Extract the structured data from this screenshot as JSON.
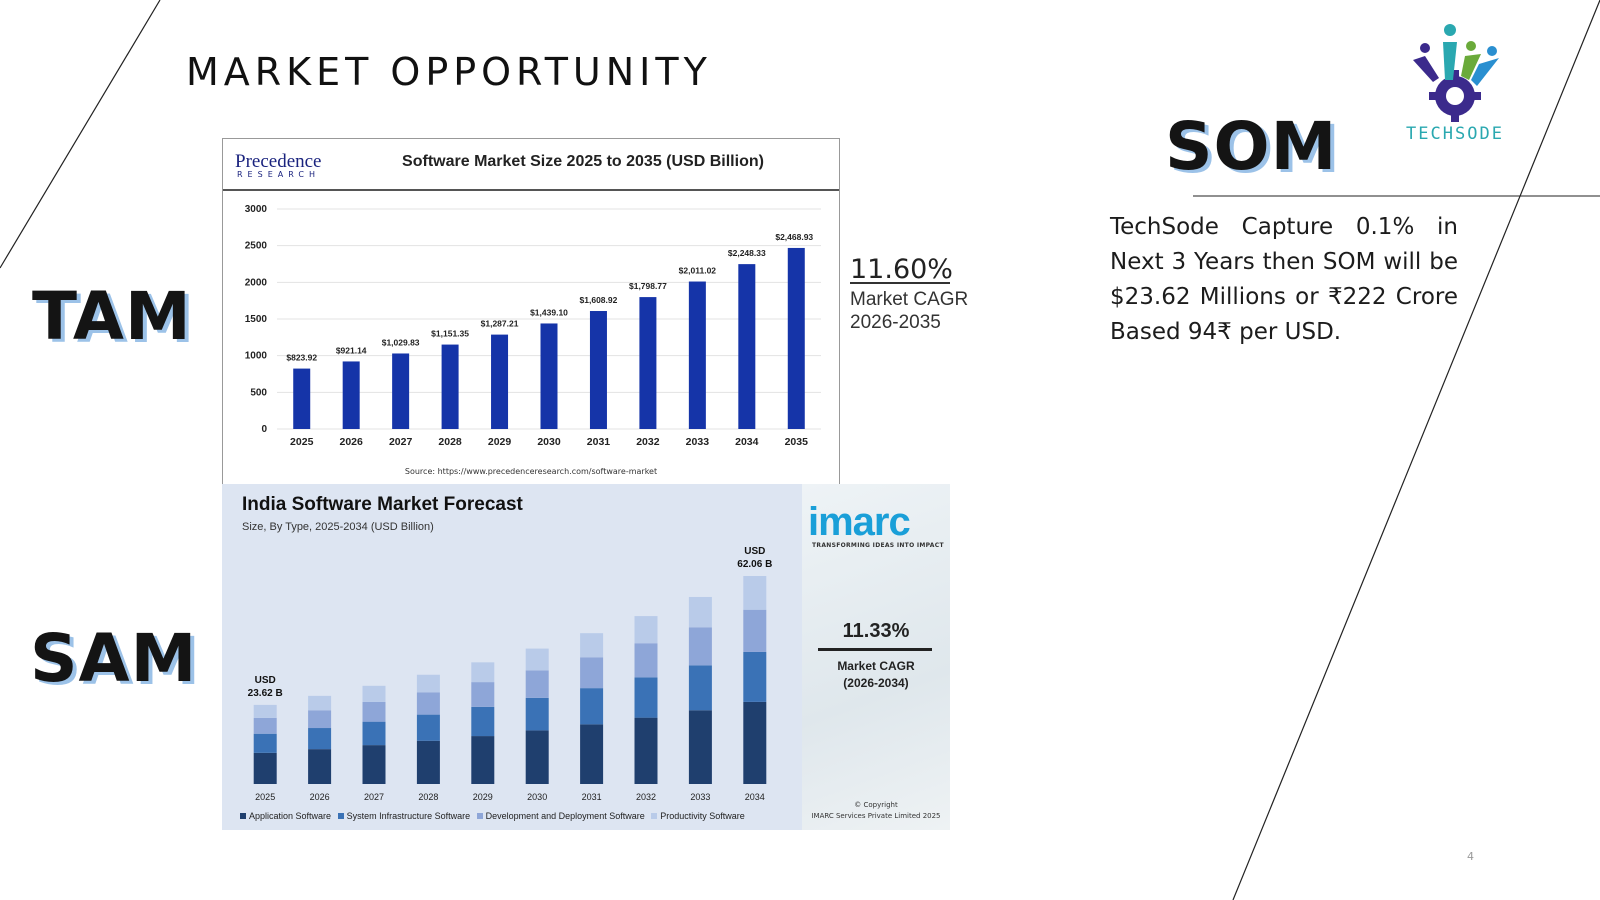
{
  "slide": {
    "title": "MARKET OPPORTUNITY",
    "tam_label": "TAM",
    "sam_label": "SAM",
    "som_label": "SOM",
    "page_number": "4",
    "logo_text": "TECHSODE",
    "som_text": "TechSode Capture 0.1% in Next 3 Years then SOM will be $23.62 Millions or ₹222 Crore Based 94₹ per USD."
  },
  "tam_cagr": {
    "value": "11.60%",
    "label_line1": "Market CAGR",
    "label_line2": "2026-2035"
  },
  "chart1": {
    "logo_name": "Precedence",
    "logo_sub": "RESEARCH",
    "title": "Software Market Size 2025 to 2035 (USD Billion)",
    "source": "Source: https://www.precedenceresearch.com/software-market"
  },
  "chart2": {
    "title": "India Software Market Forecast",
    "subtitle": "Size, By Type, 2025-2034 (USD Billion)",
    "start_label_1": "USD",
    "start_label_2": "23.62 B",
    "end_label_1": "USD",
    "end_label_2": "62.06 B",
    "legend": [
      "Application Software",
      "System Infrastructure Software",
      "Development and Deployment Software",
      "Productivity Software"
    ]
  },
  "imarc": {
    "logo": "imarc",
    "tagline": "TRANSFORMING IDEAS INTO IMPACT",
    "cagr": "11.33%",
    "cagr_label1": "Market CAGR",
    "cagr_label2": "(2026-2034)",
    "copyright1": "© Copyright",
    "copyright2": "IMARC Services Private Limited 2025"
  },
  "colors": {
    "bar_blue": "#1534a8",
    "seg1": "#1f3f6e",
    "seg2": "#3a72b6",
    "seg3": "#8ea6d8",
    "seg4": "#b9cbe9",
    "accent_shadow": "#9cc2e8"
  },
  "chart_data": [
    {
      "type": "bar",
      "title": "Software Market Size 2025 to 2035 (USD Billion)",
      "categories": [
        "2025",
        "2026",
        "2027",
        "2028",
        "2029",
        "2030",
        "2031",
        "2032",
        "2033",
        "2034",
        "2035"
      ],
      "values": [
        823.92,
        921.14,
        1029.83,
        1151.35,
        1287.21,
        1439.1,
        1608.92,
        1798.77,
        2011.02,
        2248.33,
        2468.93
      ],
      "data_labels": [
        "$823.92",
        "$921.14",
        "$1,029.83",
        "$1,151.35",
        "$1,287.21",
        "$1,439.10",
        "$1,608.92",
        "$1,798.77",
        "$2,011.02",
        "$2,248.33",
        "$2,468.93"
      ],
      "yticks": [
        0,
        500,
        1000,
        1500,
        2000,
        2500,
        3000
      ],
      "ylim": [
        0,
        3000
      ],
      "grid": true
    },
    {
      "type": "bar",
      "stacked": true,
      "title": "India Software Market Forecast",
      "categories": [
        "2025",
        "2026",
        "2027",
        "2028",
        "2029",
        "2030",
        "2031",
        "2032",
        "2033",
        "2034"
      ],
      "totals": [
        23.62,
        26.3,
        29.3,
        32.6,
        36.3,
        40.4,
        45.0,
        50.1,
        55.8,
        62.06
      ],
      "series": [
        {
          "name": "Application Software",
          "values": [
            9.3,
            10.4,
            11.6,
            12.9,
            14.3,
            16.0,
            17.8,
            19.8,
            22.0,
            24.5
          ]
        },
        {
          "name": "System Infrastructure Software",
          "values": [
            5.7,
            6.3,
            7.0,
            7.8,
            8.7,
            9.7,
            10.8,
            12.0,
            13.4,
            14.9
          ]
        },
        {
          "name": "Development and Deployment Software",
          "values": [
            4.7,
            5.3,
            5.9,
            6.6,
            7.4,
            8.2,
            9.2,
            10.2,
            11.3,
            12.6
          ]
        },
        {
          "name": "Productivity Software",
          "values": [
            3.9,
            4.3,
            4.8,
            5.3,
            5.9,
            6.5,
            7.2,
            8.1,
            9.1,
            10.06
          ]
        }
      ],
      "ylim": [
        0,
        62.06
      ],
      "grid": false,
      "legend_position": "bottom"
    }
  ]
}
